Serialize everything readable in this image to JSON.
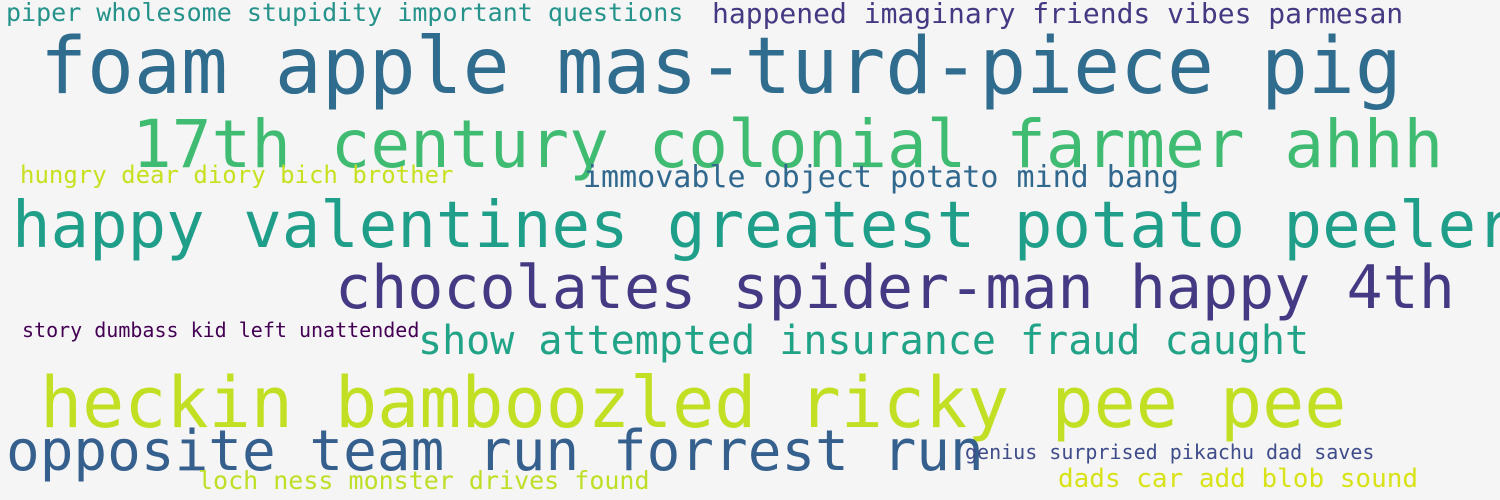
{
  "word_cloud": {
    "phrases": [
      {
        "text": "piper wholesome stupidity important questions",
        "color": "#25938b"
      },
      {
        "text": "happened imaginary friends vibes parmesan",
        "color": "#443a83"
      },
      {
        "text": "foam apple mas-turd-piece pig",
        "color": "#2f6c8e"
      },
      {
        "text": "17th century colonial farmer ahhh",
        "color": "#40bc72"
      },
      {
        "text": "hungry dear diory bich brother",
        "color": "#c8e020"
      },
      {
        "text": "immovable object potato mind bang",
        "color": "#31688e"
      },
      {
        "text": "happy valentines greatest potato peeler",
        "color": "#1f9e89"
      },
      {
        "text": "chocolates spider-man happy 4th",
        "color": "#443a83"
      },
      {
        "text": "story dumbass kid left unattended",
        "color": "#440154"
      },
      {
        "text": "show attempted insurance fraud caught",
        "color": "#20a386"
      },
      {
        "text": "heckin bamboozled ricky pee pee",
        "color": "#c2df23"
      },
      {
        "text": "opposite team run forrest run",
        "color": "#355f8d"
      },
      {
        "text": "genius surprised pikachu dad saves",
        "color": "#3e4c8a"
      },
      {
        "text": "loch ness monster drives found",
        "color": "#bddf26"
      },
      {
        "text": "dads car add blob sound",
        "color": "#d8e219"
      }
    ]
  }
}
